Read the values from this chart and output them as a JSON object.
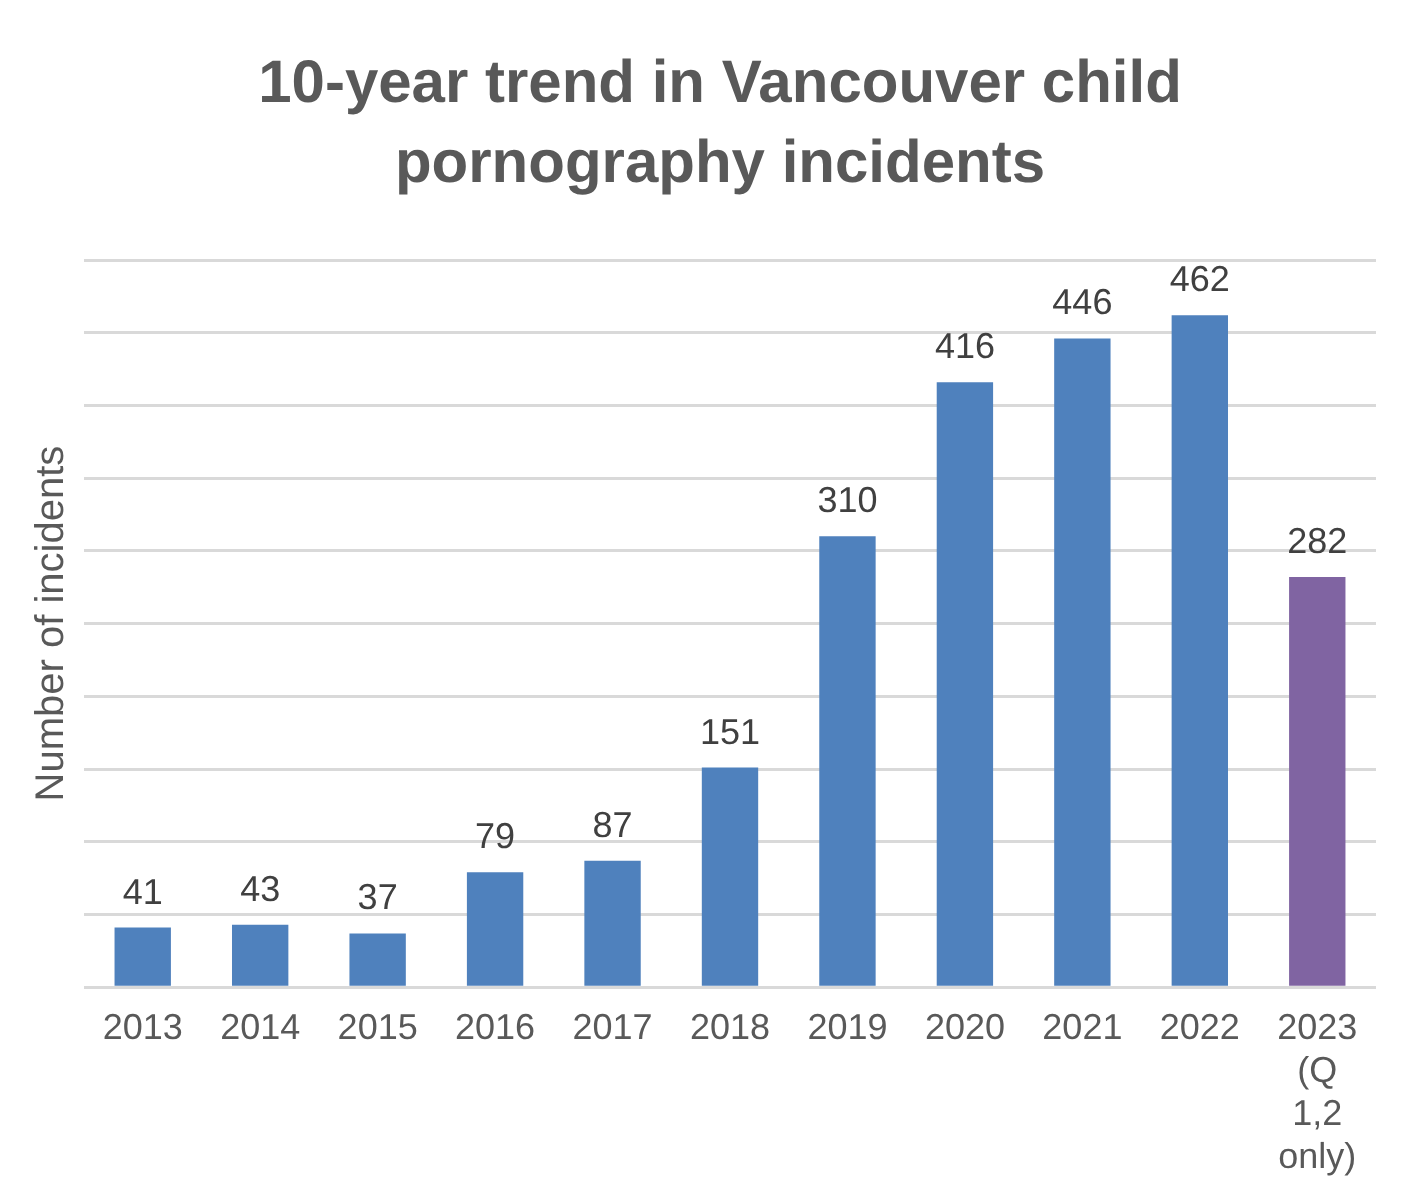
{
  "chart_data": {
    "type": "bar",
    "title": "10-year trend in Vancouver child pornography incidents",
    "ylabel": "Number of incidents",
    "categories": [
      "2013",
      "2014",
      "2015",
      "2016",
      "2017",
      "2018",
      "2019",
      "2020",
      "2021",
      "2022",
      "2023 (Q 1,2 only)"
    ],
    "values": [
      41,
      43,
      37,
      79,
      87,
      151,
      310,
      416,
      446,
      462,
      282
    ],
    "colors": [
      "#4f81bd",
      "#4f81bd",
      "#4f81bd",
      "#4f81bd",
      "#4f81bd",
      "#4f81bd",
      "#4f81bd",
      "#4f81bd",
      "#4f81bd",
      "#4f81bd",
      "#8064a2"
    ],
    "ylim": [
      0,
      500
    ],
    "yticks": [
      {
        "value": 0,
        "label": null
      },
      {
        "value": 50,
        "label": null
      },
      {
        "value": 100,
        "label": null
      },
      {
        "value": 150,
        "label": null
      },
      {
        "value": 200,
        "label": null
      },
      {
        "value": 250,
        "label": null
      },
      {
        "value": 300,
        "label": null
      },
      {
        "value": 350,
        "label": null
      },
      {
        "value": 400,
        "label": null
      },
      {
        "value": 450,
        "label": null
      },
      {
        "value": 500,
        "label": null
      }
    ],
    "tick_labels": "x",
    "grid": "y",
    "data_labels": true,
    "legend": false
  }
}
